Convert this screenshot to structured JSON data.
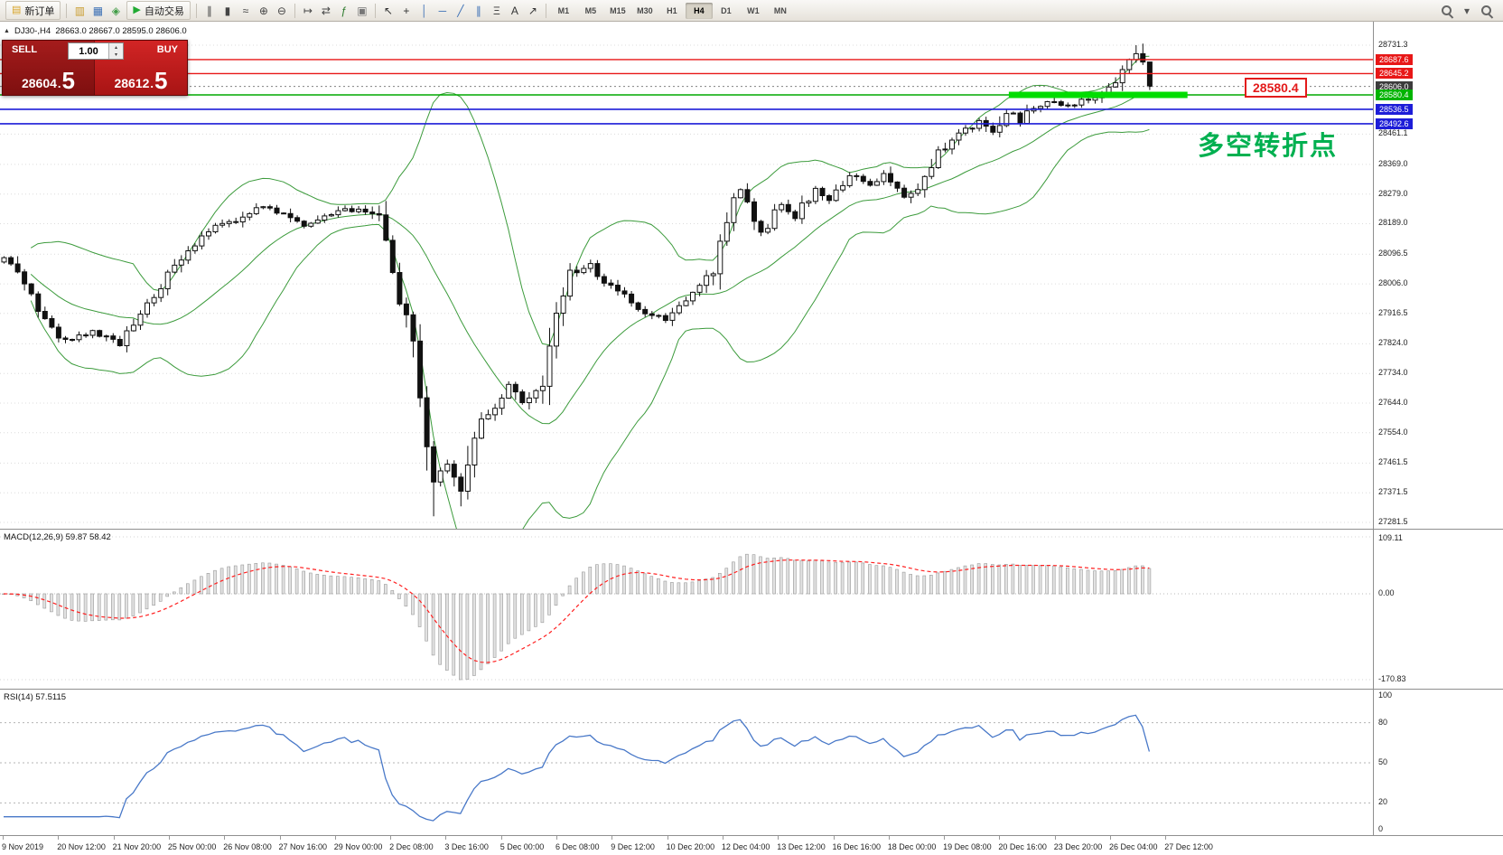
{
  "toolbar": {
    "items": [
      {
        "type": "button",
        "name": "new-order-button",
        "label": "新订单",
        "glyph": "▤",
        "glyph_color": "#d7a429"
      },
      {
        "type": "sep"
      },
      {
        "type": "icon",
        "name": "market-watch-icon",
        "glyph": "▥",
        "color": "#c99b2c"
      },
      {
        "type": "icon",
        "name": "data-window-icon",
        "glyph": "▦",
        "color": "#3b6fb5"
      },
      {
        "type": "icon",
        "name": "navigator-icon",
        "glyph": "◈",
        "color": "#3f9b44"
      },
      {
        "type": "button",
        "name": "auto-trading-button",
        "label": "自动交易",
        "glyph": "▶",
        "glyph_color": "#21aa33"
      },
      {
        "type": "sep"
      },
      {
        "type": "icon",
        "name": "bar-chart-mode-icon",
        "glyph": "∥",
        "color": "#444"
      },
      {
        "type": "icon",
        "name": "candlestick-mode-icon",
        "glyph": "▮",
        "color": "#444"
      },
      {
        "type": "icon",
        "name": "line-chart-mode-icon",
        "glyph": "≈",
        "color": "#444"
      },
      {
        "type": "icon",
        "name": "zoom-in-icon",
        "glyph": "⊕",
        "color": "#444"
      },
      {
        "type": "icon",
        "name": "zoom-out-icon",
        "glyph": "⊖",
        "color": "#444"
      },
      {
        "type": "sep"
      },
      {
        "type": "icon",
        "name": "auto-scroll-icon",
        "glyph": "↦",
        "color": "#444"
      },
      {
        "type": "icon",
        "name": "chart-shift-icon",
        "glyph": "⇄",
        "color": "#444"
      },
      {
        "type": "icon",
        "name": "indicators-icon",
        "glyph": "ƒ",
        "color": "#2c7a2c"
      },
      {
        "type": "icon",
        "name": "templates-icon",
        "glyph": "▣",
        "color": "#777"
      },
      {
        "type": "sep"
      },
      {
        "type": "icon",
        "name": "cursor-icon",
        "glyph": "↖",
        "color": "#333"
      },
      {
        "type": "icon",
        "name": "crosshair-icon",
        "glyph": "+",
        "color": "#333"
      },
      {
        "type": "icon",
        "name": "vertical-line-icon",
        "glyph": "│",
        "color": "#3b6fb5"
      },
      {
        "type": "icon",
        "name": "horizontal-line-icon",
        "glyph": "─",
        "color": "#3b6fb5"
      },
      {
        "type": "icon",
        "name": "trendline-icon",
        "glyph": "╱",
        "color": "#3b6fb5"
      },
      {
        "type": "icon",
        "name": "equidistant-channel-icon",
        "glyph": "∥",
        "color": "#3b6fb5"
      },
      {
        "type": "icon",
        "name": "fibonacci-icon",
        "glyph": "Ξ",
        "color": "#333"
      },
      {
        "type": "icon",
        "name": "text-label-icon",
        "glyph": "A",
        "color": "#333"
      },
      {
        "type": "icon",
        "name": "arrows-icon",
        "glyph": "↗",
        "color": "#333"
      },
      {
        "type": "sep"
      }
    ],
    "timeframes": [
      "M1",
      "M5",
      "M15",
      "M30",
      "H1",
      "H4",
      "D1",
      "W1",
      "MN"
    ],
    "active_timeframe": "H4",
    "right_items": [
      {
        "type": "mag",
        "name": "search-symbol-icon"
      },
      {
        "type": "icon",
        "name": "search-dropdown-icon",
        "glyph": "▾",
        "color": "#555"
      },
      {
        "type": "mag",
        "name": "quick-search-icon"
      }
    ]
  },
  "chart": {
    "collapse_marker": "▲",
    "header": "DJ30-,H4  28663.0 28667.0 28595.0 28606.0",
    "symbol": "DJ30-",
    "period": "H4",
    "annotation_label": "28580.4",
    "note_text": "多空转折点"
  },
  "trade_panel": {
    "sell_label": "SELL",
    "buy_label": "BUY",
    "volume": "1.00",
    "sell_price_main": "28604",
    "sell_price_pips": "5",
    "buy_price_main": "28612",
    "buy_price_pips": "5",
    "decimal_point": ".",
    "spin_up": "▴",
    "spin_down": "▾"
  },
  "colors": {
    "line_red": "#e81717",
    "line_blue": "#1d1dd8",
    "line_green": "#00a800",
    "band_green": "#00dd00",
    "bollinger": "#3c9b3c",
    "macd_signal": "#ff2020",
    "rsi_line": "#4878c8",
    "sell_bg": "#941414",
    "buy_bg": "#c41c1c",
    "note_green": "#00b050",
    "current_price_tag": "#3c3c3c"
  },
  "chart_data": {
    "type": "candlestick",
    "symbol": "DJ30-",
    "timeframe": "H4",
    "title": "DJ30-,H4",
    "last_bar": {
      "open": 28663.0,
      "high": 28667.0,
      "low": 28595.0,
      "close": 28606.0
    },
    "bid": 28604.5,
    "ask": 28612.5,
    "candle_count": 169,
    "price_path": [
      [
        0,
        28080
      ],
      [
        2,
        28050
      ],
      [
        6,
        27900
      ],
      [
        9,
        27830
      ],
      [
        13,
        27860
      ],
      [
        17,
        27820
      ],
      [
        20,
        27910
      ],
      [
        24,
        28030
      ],
      [
        28,
        28130
      ],
      [
        31,
        28180
      ],
      [
        35,
        28200
      ],
      [
        37,
        28240
      ],
      [
        41,
        28220
      ],
      [
        44,
        28180
      ],
      [
        47,
        28210
      ],
      [
        50,
        28230
      ],
      [
        53,
        28230
      ],
      [
        55,
        28200
      ],
      [
        57,
        28040
      ],
      [
        60,
        27820
      ],
      [
        62,
        27560
      ],
      [
        63,
        27430
      ],
      [
        65,
        27450
      ],
      [
        67,
        27380
      ],
      [
        69,
        27560
      ],
      [
        72,
        27640
      ],
      [
        74,
        27700
      ],
      [
        76,
        27640
      ],
      [
        79,
        27720
      ],
      [
        81,
        27930
      ],
      [
        83,
        28040
      ],
      [
        86,
        28060
      ],
      [
        88,
        28010
      ],
      [
        91,
        27970
      ],
      [
        94,
        27920
      ],
      [
        97,
        27900
      ],
      [
        99,
        27930
      ],
      [
        102,
        27990
      ],
      [
        104,
        28060
      ],
      [
        106,
        28210
      ],
      [
        108,
        28290
      ],
      [
        111,
        28160
      ],
      [
        114,
        28250
      ],
      [
        116,
        28210
      ],
      [
        119,
        28300
      ],
      [
        121,
        28260
      ],
      [
        124,
        28340
      ],
      [
        127,
        28310
      ],
      [
        129,
        28340
      ],
      [
        132,
        28270
      ],
      [
        135,
        28320
      ],
      [
        137,
        28400
      ],
      [
        140,
        28460
      ],
      [
        143,
        28500
      ],
      [
        145,
        28460
      ],
      [
        147,
        28530
      ],
      [
        149,
        28500
      ],
      [
        151,
        28545
      ],
      [
        153,
        28560
      ],
      [
        156,
        28545
      ],
      [
        159,
        28570
      ],
      [
        161,
        28580
      ],
      [
        163,
        28620
      ],
      [
        165,
        28690
      ],
      [
        166,
        28710
      ],
      [
        167,
        28695
      ],
      [
        168,
        28606
      ]
    ],
    "key_points": {
      "highest": [
        166,
        28731.3
      ],
      "lowest_wick": [
        63,
        27300
      ],
      "crash_low": [
        67,
        27330
      ]
    },
    "y_axis": {
      "range": [
        27281.5,
        28731.3
      ],
      "plain": [
        28731.3,
        28461.1,
        28369.0,
        28279.0,
        28189.0,
        28096.5,
        28006.0,
        27916.5,
        27824.0,
        27734.0,
        27644.0,
        27554.0,
        27461.5,
        27371.5,
        27281.5
      ],
      "tags": [
        {
          "label": "28687.6",
          "price": 28687.6,
          "bg": "#e81717"
        },
        {
          "label": "28645.2",
          "price": 28645.2,
          "bg": "#e81717"
        },
        {
          "label": "28606.0",
          "price": 28606.0,
          "bg": "#3c3c3c"
        },
        {
          "label": "28580.4",
          "price": 28580.4,
          "bg": "#00b400"
        },
        {
          "label": "28536.5",
          "price": 28536.5,
          "bg": "#1d1dd8"
        },
        {
          "label": "28492.6",
          "price": 28492.6,
          "bg": "#1d1dd8"
        }
      ]
    },
    "x_axis": [
      "9 Nov 2019",
      "20 Nov 12:00",
      "21 Nov 20:00",
      "25 Nov 00:00",
      "26 Nov 08:00",
      "27 Nov 16:00",
      "29 Nov 00:00",
      "2 Dec 08:00",
      "3 Dec 16:00",
      "5 Dec 00:00",
      "6 Dec 08:00",
      "9 Dec 12:00",
      "10 Dec 20:00",
      "12 Dec 04:00",
      "13 Dec 12:00",
      "16 Dec 16:00",
      "18 Dec 00:00",
      "19 Dec 08:00",
      "20 Dec 16:00",
      "23 Dec 20:00",
      "26 Dec 04:00",
      "27 Dec 12:00"
    ],
    "overlays": {
      "bollinger": {
        "period": 20,
        "deviation": 2,
        "color": "#3c9b3c"
      }
    },
    "horizontal_lines": [
      {
        "price": 28687.6,
        "color": "#e81717",
        "style": "solid",
        "width": 1.4
      },
      {
        "price": 28645.2,
        "color": "#e81717",
        "style": "solid",
        "width": 1.4
      },
      {
        "price": 28606.0,
        "color": "#808080",
        "style": "dot",
        "width": 1
      },
      {
        "price": 28580.4,
        "color": "#00a800",
        "style": "solid",
        "width": 1.6
      },
      {
        "price": 28536.5,
        "color": "#1d1dd8",
        "style": "solid",
        "width": 1.6
      },
      {
        "price": 28492.6,
        "color": "#1d1dd8",
        "style": "solid",
        "width": 1.6
      }
    ],
    "highlight_segment": {
      "price": 28580.4,
      "bar_start": 147.4,
      "bar_end": 173.6,
      "color": "#00dd00",
      "thickness": 7
    },
    "subcharts": [
      {
        "type": "macd",
        "label": "MACD(12,26,9) 59.87 58.42",
        "params": [
          12,
          26,
          9
        ],
        "values": [
          59.87,
          58.42
        ],
        "axis": [
          "109.11",
          "0.00",
          "-170.83"
        ],
        "histogram_color": "#e2e2e2",
        "signal_color": "#ff2020"
      },
      {
        "type": "rsi",
        "label": "RSI(14) 57.5115",
        "period": 14,
        "value": 57.5115,
        "axis": [
          "100",
          "80",
          "50",
          "20",
          "0"
        ],
        "levels": [
          80,
          50,
          20
        ],
        "color": "#4878c8"
      }
    ]
  }
}
